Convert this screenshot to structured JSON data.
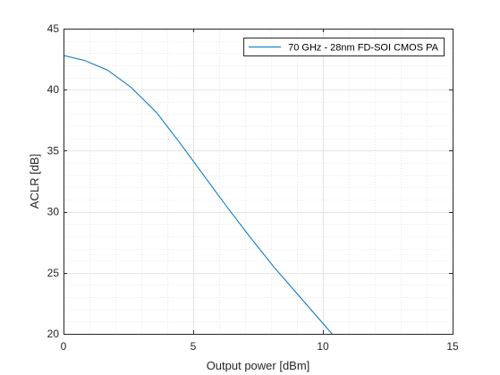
{
  "chart_data": {
    "type": "line",
    "xlabel": "Output power [dBm]",
    "ylabel": "ACLR [dB]",
    "xlim": [
      0,
      15
    ],
    "ylim": [
      20,
      45
    ],
    "xticks": [
      0,
      5,
      10,
      15
    ],
    "yticks": [
      20,
      25,
      30,
      35,
      40,
      45
    ],
    "grid": true,
    "minor_grid": true,
    "legend_position": "top-right",
    "series": [
      {
        "name": "70 GHz - 28nm FD-SOI CMOS PA",
        "color": "#0072BD",
        "x": [
          0,
          0.8,
          1.7,
          2.6,
          3.6,
          4.5,
          5.4,
          6.3,
          7.2,
          8.1,
          9.0,
          9.9,
          10.8,
          11.1
        ],
        "y": [
          42.8,
          42.4,
          41.6,
          40.2,
          38.1,
          35.6,
          33.0,
          30.4,
          27.9,
          25.5,
          23.3,
          21.1,
          18.9,
          18.2
        ]
      }
    ]
  }
}
